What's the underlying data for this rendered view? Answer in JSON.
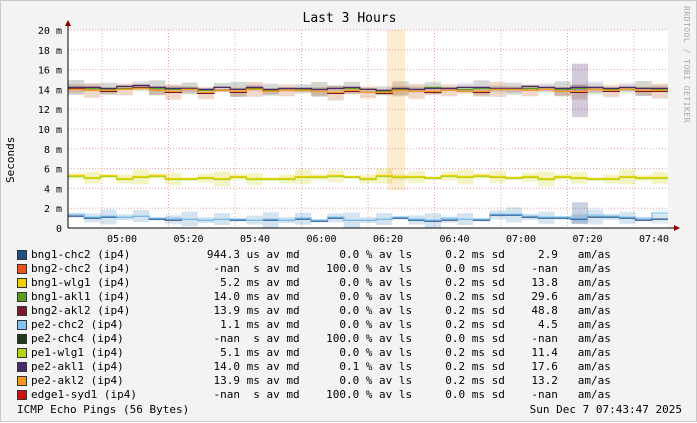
{
  "chart_data": {
    "type": "line",
    "title": "Last 3 Hours",
    "ylabel": "Seconds",
    "watermark": "RRDTOOL / TOBI OETIKER",
    "ylim": [
      0,
      20
    ],
    "y_unit": "ms",
    "y_ticks": [
      "0",
      "2 m",
      "4 m",
      "6 m",
      "8 m",
      "10 m",
      "12 m",
      "14 m",
      "16 m",
      "18 m",
      "20 m"
    ],
    "x_ticks": [
      "05:00",
      "05:20",
      "05:40",
      "06:00",
      "06:20",
      "06:40",
      "07:00",
      "07:20",
      "07:40"
    ],
    "grid": true,
    "series": [
      {
        "name": "bng1-chc2 (ip4)",
        "color": "#1f4e8c",
        "stats": "944.3 us av md      0.0 % av ls     0.2 ms sd     2.9   am/as",
        "values": [
          1.2,
          1.0,
          1.1,
          1.1,
          1.2,
          0.9,
          0.8,
          0.9,
          0.8,
          0.9,
          0.8,
          0.8,
          0.8,
          0.8,
          0.9,
          0.7,
          1.0,
          0.8,
          0.8,
          0.9,
          1.0,
          0.8,
          0.7,
          0.8,
          0.9,
          0.8,
          1.3,
          1.3,
          1.1,
          1.0,
          1.0,
          0.9,
          1.1,
          1.1,
          1.0,
          0.8,
          0.9
        ]
      },
      {
        "name": "bng2-chc2 (ip4)",
        "color": "#e8541c",
        "stats": "-nan  s av md    100.0 % av ls     0.0 ms sd    -nan   am/as",
        "values": []
      },
      {
        "name": "bng1-wlg1 (ip4)",
        "color": "#f4d000",
        "stats": "5.2 ms av md      0.0 % av ls     0.2 ms sd    13.8   am/as",
        "values": [
          5.3,
          5.1,
          5.3,
          5.0,
          5.2,
          5.3,
          5.0,
          5.0,
          5.1,
          5.0,
          5.2,
          5.0,
          5.0,
          5.0,
          5.2,
          5.2,
          5.3,
          5.2,
          5.0,
          5.3,
          5.2,
          5.2,
          5.1,
          5.3,
          5.2,
          5.3,
          5.2,
          5.1,
          5.2,
          5.0,
          5.2,
          5.1,
          5.0,
          5.0,
          5.2,
          5.1,
          5.1
        ]
      },
      {
        "name": "bng1-akl1 (ip4)",
        "color": "#5a9e1e",
        "stats": "14.0 ms av md      0.0 % av ls     0.2 ms sd    29.6   am/as",
        "values": [
          14.2,
          14.1,
          14.0,
          14.1,
          14.2,
          14.1,
          14.0,
          14.1,
          13.9,
          14.2,
          14.0,
          14.1,
          13.9,
          13.9,
          14.0,
          14.0,
          14.1,
          14.1,
          14.0,
          13.8,
          14.0,
          14.0,
          14.2,
          14.1,
          14.0,
          14.1,
          14.0,
          14.0,
          14.1,
          14.0,
          14.0,
          14.1,
          14.0,
          14.0,
          14.0,
          14.1,
          14.0
        ]
      },
      {
        "name": "bng2-akl2 (ip4)",
        "color": "#7a1a2a",
        "stats": "13.9 ms av md      0.0 % av ls     0.2 ms sd    48.8   am/as",
        "values": [
          14.1,
          13.9,
          13.8,
          14.0,
          14.2,
          13.9,
          13.7,
          14.0,
          13.6,
          13.9,
          13.7,
          14.0,
          13.8,
          13.9,
          13.9,
          13.8,
          13.6,
          13.8,
          13.7,
          13.6,
          13.9,
          13.8,
          13.7,
          13.9,
          13.8,
          13.7,
          14.0,
          14.0,
          13.9,
          14.0,
          13.8,
          13.7,
          14.0,
          13.8,
          14.0,
          13.8,
          13.8
        ]
      },
      {
        "name": "pe2-chc2 (ip4)",
        "color": "#7fc4f0",
        "stats": "1.1 ms av md      0.0 % av ls     0.2 ms sd     4.5   am/as",
        "values": [
          1.4,
          1.1,
          1.2,
          1.1,
          1.2,
          1.0,
          1.0,
          0.9,
          0.8,
          0.9,
          0.9,
          0.8,
          0.9,
          0.8,
          1.0,
          0.8,
          1.1,
          0.8,
          0.8,
          0.9,
          1.1,
          0.9,
          0.8,
          1.0,
          0.9,
          0.9,
          1.4,
          1.4,
          1.2,
          1.1,
          1.1,
          1.0,
          1.3,
          1.2,
          1.1,
          1.0,
          1.5
        ]
      },
      {
        "name": "pe2-chc4 (ip4)",
        "color": "#1f3a1a",
        "stats": "-nan  s av md    100.0 % av ls     0.0 ms sd    -nan   am/as",
        "values": []
      },
      {
        "name": "pe1-wlg1 (ip4)",
        "color": "#b4d416",
        "stats": "5.1 ms av md      0.0 % av ls     0.2 ms sd    11.4   am/as",
        "values": [
          5.2,
          5.0,
          5.2,
          4.9,
          5.1,
          5.2,
          4.9,
          4.9,
          5.0,
          4.9,
          5.1,
          4.9,
          4.9,
          4.9,
          5.1,
          5.1,
          5.2,
          5.1,
          4.9,
          5.2,
          5.1,
          5.1,
          5.0,
          5.2,
          5.1,
          5.2,
          5.1,
          5.0,
          5.1,
          4.9,
          5.1,
          5.0,
          4.9,
          4.9,
          5.1,
          5.0,
          5.0
        ]
      },
      {
        "name": "pe2-akl1 (ip4)",
        "color": "#4a2a6a",
        "stats": "14.0 ms av md      0.1 % av ls     0.2 ms sd    17.6   am/as",
        "values": [
          14.2,
          14.2,
          14.1,
          14.3,
          14.4,
          14.2,
          14.1,
          14.1,
          14.0,
          14.2,
          14.0,
          14.2,
          14.0,
          14.1,
          14.1,
          14.0,
          14.1,
          14.2,
          14.0,
          13.9,
          14.1,
          14.0,
          14.1,
          14.1,
          14.2,
          14.2,
          14.1,
          14.1,
          14.3,
          14.2,
          14.1,
          14.2,
          14.2,
          14.1,
          14.2,
          14.1,
          14.1
        ]
      },
      {
        "name": "pe2-akl2 (ip4)",
        "color": "#f49a20",
        "stats": "13.9 ms av md      0.0 % av ls     0.2 ms sd    13.2   am/as",
        "values": [
          14.0,
          13.9,
          13.9,
          14.0,
          14.1,
          13.9,
          13.8,
          14.0,
          13.7,
          13.9,
          13.8,
          14.0,
          13.8,
          13.9,
          13.9,
          13.8,
          13.7,
          13.9,
          13.7,
          13.7,
          13.9,
          13.8,
          13.8,
          13.9,
          13.8,
          13.8,
          14.0,
          14.0,
          13.9,
          14.0,
          13.8,
          13.8,
          14.0,
          13.9,
          14.0,
          13.9,
          13.9
        ]
      },
      {
        "name": "edge1-syd1 (ip4)",
        "color": "#c81414",
        "stats": "-nan  s av md    100.0 % av ls     0.0 ms sd    -nan   am/as",
        "values": []
      }
    ],
    "footer_left": "ICMP Echo Pings (56 Bytes)",
    "footer_right": "Sun Dec  7 07:43:47 2025"
  }
}
